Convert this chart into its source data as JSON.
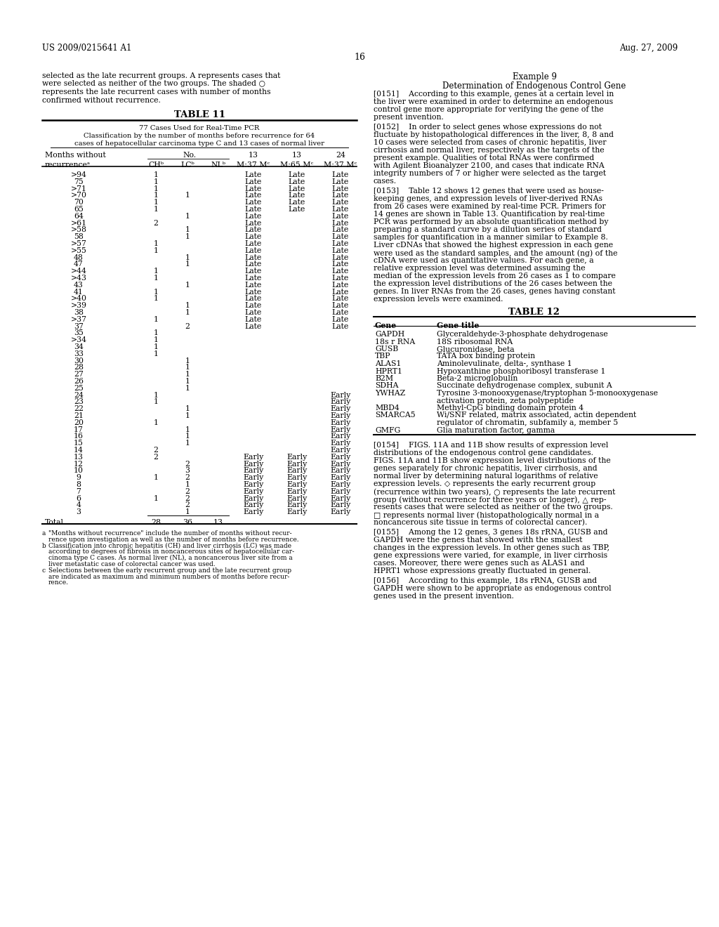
{
  "page_header_left": "US 2009/0215641 A1",
  "page_header_right": "Aug. 27, 2009",
  "page_number": "16",
  "left_col_intro": [
    "selected as the late recurrent groups. A represents cases that",
    "were selected as neither of the two groups. The shaded ○",
    "represents the late recurrent cases with number of months",
    "confirmed without recurrence."
  ],
  "table11_title": "TABLE 11",
  "table11_sub1": "77 Cases Used for Real-Time PCR",
  "table11_sub2": "Classification by the number of months before recurrence for 64",
  "table11_sub3": "cases of hepatocellular carcinoma type C and 13 cases of normal liver",
  "table11_rows": [
    [
      ">94",
      "1",
      "",
      "",
      "Late",
      "Late",
      "Late"
    ],
    [
      "75",
      "1",
      "",
      "",
      "Late",
      "Late",
      "Late"
    ],
    [
      ">71",
      "1",
      "",
      "",
      "Late",
      "Late",
      "Late"
    ],
    [
      ">70",
      "1",
      "1",
      "",
      "Late",
      "Late",
      "Late"
    ],
    [
      "70",
      "1",
      "",
      "",
      "Late",
      "Late",
      "Late"
    ],
    [
      "65",
      "1",
      "",
      "",
      "Late",
      "Late",
      "Late"
    ],
    [
      "64",
      "",
      "1",
      "",
      "Late",
      "",
      "Late"
    ],
    [
      ">61",
      "2",
      "",
      "",
      "Late",
      "",
      "Late"
    ],
    [
      ">58",
      "",
      "1",
      "",
      "Late",
      "",
      "Late"
    ],
    [
      "58",
      "",
      "1",
      "",
      "Late",
      "",
      "Late"
    ],
    [
      ">57",
      "1",
      "",
      "",
      "Late",
      "",
      "Late"
    ],
    [
      ">55",
      "1",
      "",
      "",
      "Late",
      "",
      "Late"
    ],
    [
      "48",
      "",
      "1",
      "",
      "Late",
      "",
      "Late"
    ],
    [
      "47",
      "",
      "1",
      "",
      "Late",
      "",
      "Late"
    ],
    [
      ">44",
      "1",
      "",
      "",
      "Late",
      "",
      "Late"
    ],
    [
      ">43",
      "1",
      "",
      "",
      "Late",
      "",
      "Late"
    ],
    [
      "43",
      "",
      "1",
      "",
      "Late",
      "",
      "Late"
    ],
    [
      "41",
      "1",
      "",
      "",
      "Late",
      "",
      "Late"
    ],
    [
      ">40",
      "1",
      "",
      "",
      "Late",
      "",
      "Late"
    ],
    [
      ">39",
      "",
      "1",
      "",
      "Late",
      "",
      "Late"
    ],
    [
      "38",
      "",
      "1",
      "",
      "Late",
      "",
      "Late"
    ],
    [
      ">37",
      "1",
      "",
      "",
      "Late",
      "",
      "Late"
    ],
    [
      "37",
      "",
      "2",
      "",
      "Late",
      "",
      "Late"
    ],
    [
      "35",
      "1",
      "",
      "",
      "",
      "",
      ""
    ],
    [
      ">34",
      "1",
      "",
      "",
      "",
      "",
      ""
    ],
    [
      "34",
      "1",
      "",
      "",
      "",
      "",
      ""
    ],
    [
      "33",
      "1",
      "",
      "",
      "",
      "",
      ""
    ],
    [
      "30",
      "",
      "1",
      "",
      "",
      "",
      ""
    ],
    [
      "28",
      "",
      "1",
      "",
      "",
      "",
      ""
    ],
    [
      "27",
      "",
      "1",
      "",
      "",
      "",
      ""
    ],
    [
      "26",
      "",
      "1",
      "",
      "",
      "",
      ""
    ],
    [
      "25",
      "",
      "1",
      "",
      "",
      "",
      ""
    ],
    [
      "24",
      "1",
      "",
      "",
      "",
      "",
      "Early"
    ],
    [
      "23",
      "1",
      "",
      "",
      "",
      "",
      "Early"
    ],
    [
      "22",
      "",
      "1",
      "",
      "",
      "",
      "Early"
    ],
    [
      "21",
      "",
      "1",
      "",
      "",
      "",
      "Early"
    ],
    [
      "20",
      "1",
      "",
      "",
      "",
      "",
      "Early"
    ],
    [
      "17",
      "",
      "1",
      "",
      "",
      "",
      "Early"
    ],
    [
      "16",
      "",
      "1",
      "",
      "",
      "",
      "Early"
    ],
    [
      "15",
      "",
      "1",
      "",
      "",
      "",
      "Early"
    ],
    [
      "14",
      "2",
      "",
      "",
      "",
      "",
      "Early"
    ],
    [
      "13",
      "2",
      "",
      "",
      "Early",
      "Early",
      "Early"
    ],
    [
      "12",
      "",
      "2",
      "",
      "Early",
      "Early",
      "Early"
    ],
    [
      "10",
      "",
      "3",
      "",
      "Early",
      "Early",
      "Early"
    ],
    [
      "9",
      "1",
      "2",
      "",
      "Early",
      "Early",
      "Early"
    ],
    [
      "8",
      "",
      "1",
      "",
      "Early",
      "Early",
      "Early"
    ],
    [
      "7",
      "",
      "2",
      "",
      "Early",
      "Early",
      "Early"
    ],
    [
      "6",
      "1",
      "2",
      "",
      "Early",
      "Early",
      "Early"
    ],
    [
      "4",
      "",
      "2",
      "",
      "Early",
      "Early",
      "Early"
    ],
    [
      "3",
      "",
      "1",
      "",
      "Early",
      "Early",
      "Early"
    ]
  ],
  "table11_fn": [
    [
      "a",
      "\"Months without recurrence\" include the number of months without recur-"
    ],
    [
      "",
      "rence upon investigation as well as the number of months before recurrence."
    ],
    [
      "b",
      "Classification into chronic hepatitis (CH) and liver cirrhosis (LC) was made"
    ],
    [
      "",
      "according to degrees of fibrosis in noncancerous sites of hepatocellular car-"
    ],
    [
      "",
      "cinoma type C cases. As normal liver (NL), a noncancerous liver site from a"
    ],
    [
      "",
      "liver metastatic case of colorectal cancer was used."
    ],
    [
      "c",
      "Selections between the early recurrent group and the late recurrent group"
    ],
    [
      "",
      "are indicated as maximum and minimum numbers of months before recur-"
    ],
    [
      "",
      "rence."
    ]
  ],
  "right_title1": "Example 9",
  "right_title2": "Determination of Endogenous Control Gene",
  "right_para0151": [
    "[0151]    According to this example, genes at a certain level in",
    "the liver were examined in order to determine an endogenous",
    "control gene more appropriate for verifying the gene of the",
    "present invention."
  ],
  "right_para0152": [
    "[0152]    In order to select genes whose expressions do not",
    "fluctuate by histopathological differences in the liver, 8, 8 and",
    "10 cases were selected from cases of chronic hepatitis, liver",
    "cirrhosis and normal liver, respectively as the targets of the",
    "present example. Qualities of total RNAs were confirmed",
    "with Agilent Bioanalyzer 2100, and cases that indicate RNA",
    "integrity numbers of 7 or higher were selected as the target",
    "cases."
  ],
  "right_para0153": [
    "[0153]    Table 12 shows 12 genes that were used as house-",
    "keeping genes, and expression levels of liver-derived RNAs",
    "from 26 cases were examined by real-time PCR. Primers for",
    "14 genes are shown in Table 13. Quantification by real-time",
    "PCR was performed by an absolute quantification method by",
    "preparing a standard curve by a dilution series of standard",
    "samples for quantification in a manner similar to Example 8.",
    "Liver cDNAs that showed the highest expression in each gene",
    "were used as the standard samples, and the amount (ng) of the",
    "cDNA were used as quantitative values. For each gene, a",
    "relative expression level was determined assuming the",
    "median of the expression levels from 26 cases as 1 to compare",
    "the expression level distributions of the 26 cases between the",
    "genes. In liver RNAs from the 26 cases, genes having constant",
    "expression levels were examined."
  ],
  "table12_title": "TABLE 12",
  "table12_rows": [
    [
      "GAPDH",
      "Glyceraldehyde-3-phosphate dehydrogenase"
    ],
    [
      "18s r RNA",
      "18S ribosomal RNA"
    ],
    [
      "GUSB",
      "Glucuronidase, beta"
    ],
    [
      "TBP",
      "TATA box binding protein"
    ],
    [
      "ALAS1",
      "Aminolevulinate, delta-, synthase 1"
    ],
    [
      "HPRT1",
      "Hypoxanthine phosphoribosyl transferase 1"
    ],
    [
      "B2M",
      "Beta-2 microglobulin"
    ],
    [
      "SDHA",
      "Succinate dehydrogenase complex, subunit A"
    ],
    [
      "YWHAZ",
      "Tyrosine 3-monooxygenase/tryptophan 5-monooxygenase"
    ],
    [
      "",
      "activation protein, zeta polypeptide"
    ],
    [
      "MBD4",
      "Methyl-CpG binding domain protein 4"
    ],
    [
      "SMARCA5",
      "Wi/SNF related, matrix associated, actin dependent"
    ],
    [
      "",
      "regulator of chromatin, subfamily a, member 5"
    ],
    [
      "GMFG",
      "Glia maturation factor, gamma"
    ]
  ],
  "right_para0154": [
    "[0154]    FIGS. 11A and 11B show results of expression level",
    "distributions of the endogenous control gene candidates.",
    "FIGS. 11A and 11B show expression level distributions of the",
    "genes separately for chronic hepatitis, liver cirrhosis, and",
    "normal liver by determining natural logarithms of relative",
    "expression levels. ◇ represents the early recurrent group",
    "(recurrence within two years), ○ represents the late recurrent",
    "group (without recurrence for three years or longer), △ rep-",
    "resents cases that were selected as neither of the two groups.",
    "□ represents normal liver (histopathologically normal in a",
    "noncancerous site tissue in terms of colorectal cancer)."
  ],
  "right_para0155": [
    "[0155]    Among the 12 genes, 3 genes 18s rRNA, GUSB and",
    "GAPDH were the genes that showed with the smallest",
    "changes in the expression levels. In other genes such as TBP,",
    "gene expressions were varied, for example, in liver cirrhosis",
    "cases. Moreover, there were genes such as ALAS1 and",
    "HPRT1 whose expressions greatly fluctuated in general."
  ],
  "right_para0156": [
    "[0156]    According to this example, 18s rRNA, GUSB and",
    "GAPDH were shown to be appropriate as endogenous control",
    "genes used in the present invention."
  ]
}
